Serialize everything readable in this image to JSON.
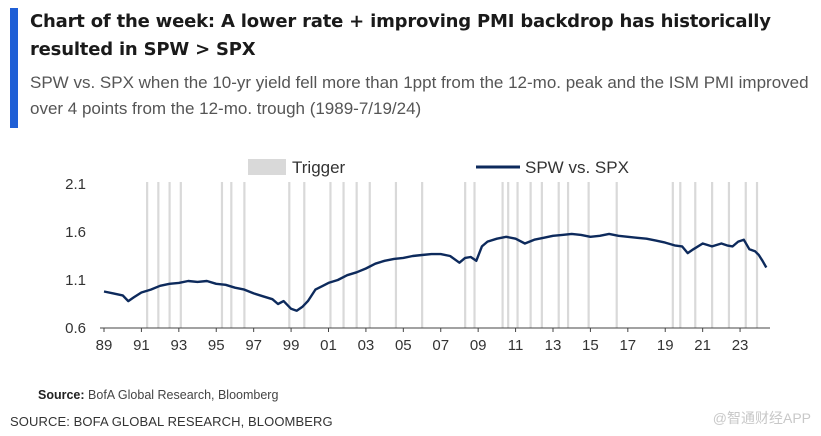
{
  "colors": {
    "accent": "#1f5fd6",
    "line": "#0d2a5c",
    "trigger": "#d9d9d9",
    "axis": "#444444",
    "text": "#333333"
  },
  "title": "Chart of the week: A lower rate + improving PMI backdrop has historically resulted in SPW > SPX",
  "subtitle": "SPW vs. SPX when the 10-yr yield fell more than 1ppt from the 12-mo. peak and the ISM PMI improved over 4 points from the 12-mo. trough (1989-7/19/24)",
  "source": {
    "label": "Source:",
    "text": "BofA Global Research, Bloomberg"
  },
  "footer": "SOURCE: BOFA GLOBAL RESEARCH, BLOOMBERG",
  "watermark": "@智通财经APP",
  "chart_data": {
    "type": "line",
    "title": "",
    "legend": [
      "Trigger",
      "SPW vs. SPX"
    ],
    "legend_position": "top-center",
    "xlabel": "",
    "ylabel": "",
    "xlim": [
      1989,
      2024.6
    ],
    "ylim": [
      0.6,
      2.1
    ],
    "yticks": [
      0.6,
      1.1,
      1.6,
      2.1
    ],
    "xtick_labels": [
      "89",
      "91",
      "93",
      "95",
      "97",
      "99",
      "01",
      "03",
      "05",
      "07",
      "09",
      "11",
      "13",
      "15",
      "17",
      "19",
      "21",
      "23"
    ],
    "xtick_years": [
      1989,
      1991,
      1993,
      1995,
      1997,
      1999,
      2001,
      2003,
      2005,
      2007,
      2009,
      2011,
      2013,
      2015,
      2017,
      2019,
      2021,
      2023
    ],
    "series": [
      {
        "name": "SPW vs. SPX",
        "x": [
          1989.0,
          1989.5,
          1990.0,
          1990.3,
          1990.6,
          1991.0,
          1991.5,
          1992.0,
          1992.5,
          1993.0,
          1993.5,
          1994.0,
          1994.5,
          1995.0,
          1995.5,
          1996.0,
          1996.5,
          1997.0,
          1997.5,
          1998.0,
          1998.3,
          1998.6,
          1999.0,
          1999.3,
          1999.6,
          1999.9,
          2000.3,
          2000.7,
          2001.0,
          2001.5,
          2002.0,
          2002.5,
          2003.0,
          2003.5,
          2004.0,
          2004.5,
          2005.0,
          2005.5,
          2006.0,
          2006.5,
          2007.0,
          2007.5,
          2008.0,
          2008.3,
          2008.6,
          2008.9,
          2009.2,
          2009.5,
          2010.0,
          2010.5,
          2011.0,
          2011.5,
          2012.0,
          2012.5,
          2013.0,
          2013.5,
          2014.0,
          2014.5,
          2015.0,
          2015.5,
          2016.0,
          2016.5,
          2017.0,
          2017.5,
          2018.0,
          2018.5,
          2019.0,
          2019.5,
          2019.9,
          2020.2,
          2020.5,
          2021.0,
          2021.5,
          2022.0,
          2022.3,
          2022.6,
          2022.9,
          2023.2,
          2023.5,
          2023.8,
          2024.0,
          2024.2,
          2024.4
        ],
        "y": [
          0.98,
          0.96,
          0.94,
          0.88,
          0.92,
          0.97,
          1.0,
          1.04,
          1.06,
          1.07,
          1.09,
          1.08,
          1.09,
          1.06,
          1.05,
          1.02,
          1.0,
          0.96,
          0.93,
          0.9,
          0.85,
          0.88,
          0.8,
          0.78,
          0.82,
          0.88,
          1.0,
          1.04,
          1.07,
          1.1,
          1.15,
          1.18,
          1.22,
          1.27,
          1.3,
          1.32,
          1.33,
          1.35,
          1.36,
          1.37,
          1.37,
          1.35,
          1.28,
          1.33,
          1.34,
          1.3,
          1.45,
          1.5,
          1.53,
          1.55,
          1.53,
          1.48,
          1.52,
          1.54,
          1.56,
          1.57,
          1.58,
          1.57,
          1.55,
          1.56,
          1.58,
          1.56,
          1.55,
          1.54,
          1.53,
          1.51,
          1.49,
          1.46,
          1.45,
          1.38,
          1.42,
          1.48,
          1.45,
          1.48,
          1.46,
          1.45,
          1.5,
          1.52,
          1.42,
          1.4,
          1.36,
          1.3,
          1.23
        ]
      }
    ],
    "trigger_years": [
      1991.3,
      1991.9,
      1992.5,
      1993.1,
      1995.3,
      1995.8,
      1996.5,
      1998.9,
      1999.7,
      2001.1,
      2001.8,
      2002.5,
      2003.2,
      2004.6,
      2006.0,
      2008.3,
      2008.8,
      2010.3,
      2010.6,
      2011.1,
      2011.8,
      2012.4,
      2013.3,
      2013.8,
      2014.9,
      2016.4,
      2019.4,
      2019.8,
      2020.6,
      2021.5,
      2022.4,
      2023.3,
      2023.9
    ]
  }
}
